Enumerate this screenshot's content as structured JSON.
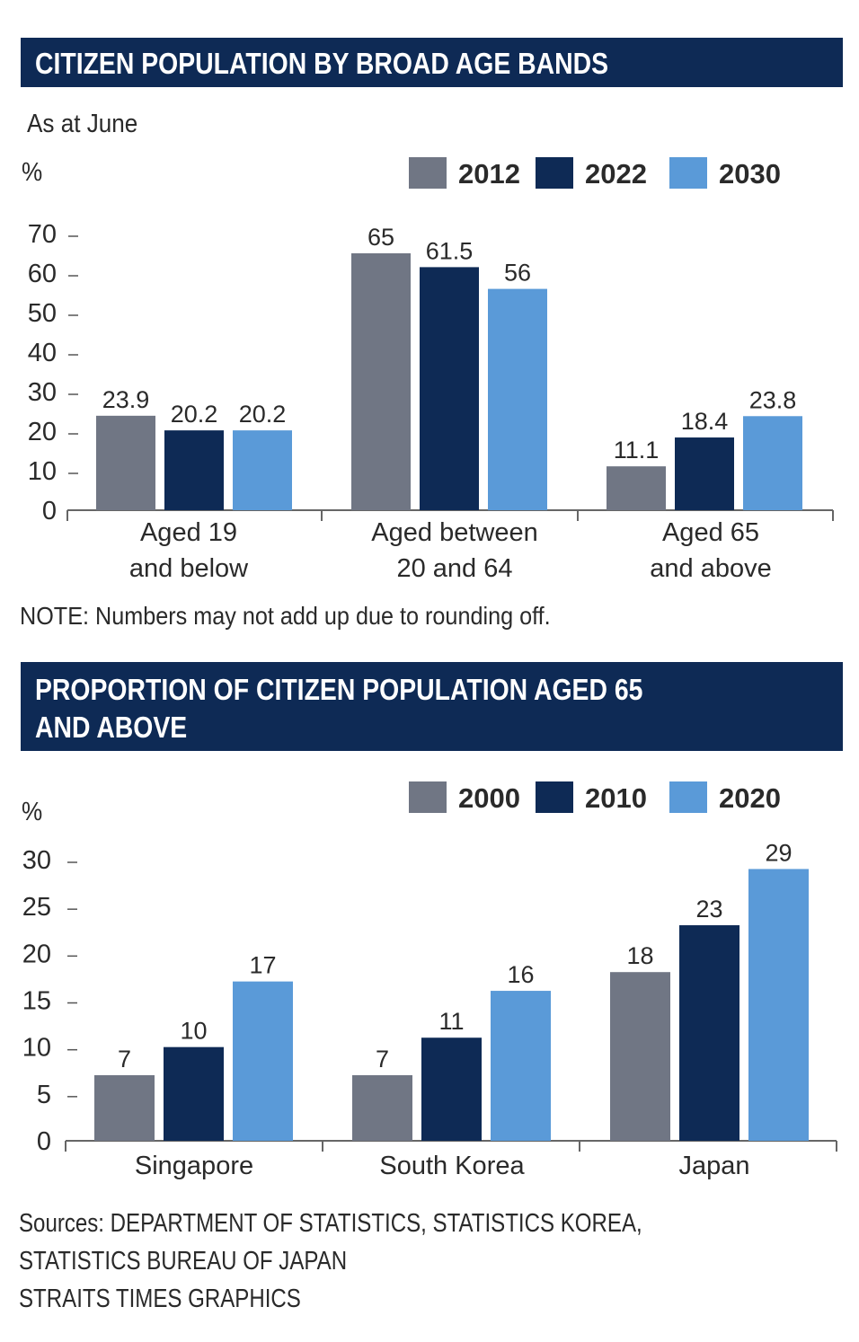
{
  "colors": {
    "header_bg": "#0e2a55",
    "gray": "#707684",
    "navy": "#0e2a55",
    "blue": "#5a9ad8",
    "text": "#2a2a2a"
  },
  "chart1": {
    "title": "CITIZEN POPULATION BY BROAD AGE BANDS",
    "subtitle": "As at June",
    "unit": "%",
    "note": "NOTE: Numbers may not add up due to rounding off."
  },
  "chart2": {
    "title_line1": "PROPORTION OF CITIZEN POPULATION AGED 65",
    "title_line2": "AND ABOVE",
    "unit": "%"
  },
  "footer": {
    "sources_line1": "Sources: DEPARTMENT OF STATISTICS, STATISTICS KOREA,",
    "sources_line2": "STATISTICS BUREAU OF JAPAN",
    "credit": "STRAITS TIMES GRAPHICS"
  },
  "chart_data": [
    {
      "type": "bar",
      "title": "CITIZEN POPULATION BY BROAD AGE BANDS",
      "subtitle": "As at June",
      "ylabel": "%",
      "ylim": [
        0,
        70
      ],
      "yticks": [
        "0",
        "10",
        "20",
        "30",
        "40",
        "50",
        "60",
        "70"
      ],
      "categories": [
        [
          "Aged 19",
          "and below"
        ],
        [
          "Aged between",
          "20 and 64"
        ],
        [
          "Aged 65",
          "and above"
        ]
      ],
      "legend": "top-right",
      "grid": false,
      "series": [
        {
          "name": "2012",
          "color": "#707684",
          "values": [
            23.9,
            65,
            11.1
          ]
        },
        {
          "name": "2022",
          "color": "#0e2a55",
          "values": [
            20.2,
            61.5,
            18.4
          ]
        },
        {
          "name": "2030",
          "color": "#5a9ad8",
          "values": [
            20.2,
            56,
            23.8
          ]
        }
      ]
    },
    {
      "type": "bar",
      "title": "PROPORTION OF CITIZEN POPULATION AGED 65 AND ABOVE",
      "ylabel": "%",
      "ylim": [
        0,
        30
      ],
      "yticks": [
        "0",
        "5",
        "10",
        "15",
        "20",
        "25",
        "30"
      ],
      "categories": [
        [
          "Singapore"
        ],
        [
          "South Korea"
        ],
        [
          "Japan"
        ]
      ],
      "legend": "top-right",
      "grid": false,
      "series": [
        {
          "name": "2000",
          "color": "#707684",
          "values": [
            7,
            7,
            18
          ]
        },
        {
          "name": "2010",
          "color": "#0e2a55",
          "values": [
            10,
            11,
            23
          ]
        },
        {
          "name": "2020",
          "color": "#5a9ad8",
          "values": [
            17,
            16,
            29
          ]
        }
      ]
    }
  ]
}
